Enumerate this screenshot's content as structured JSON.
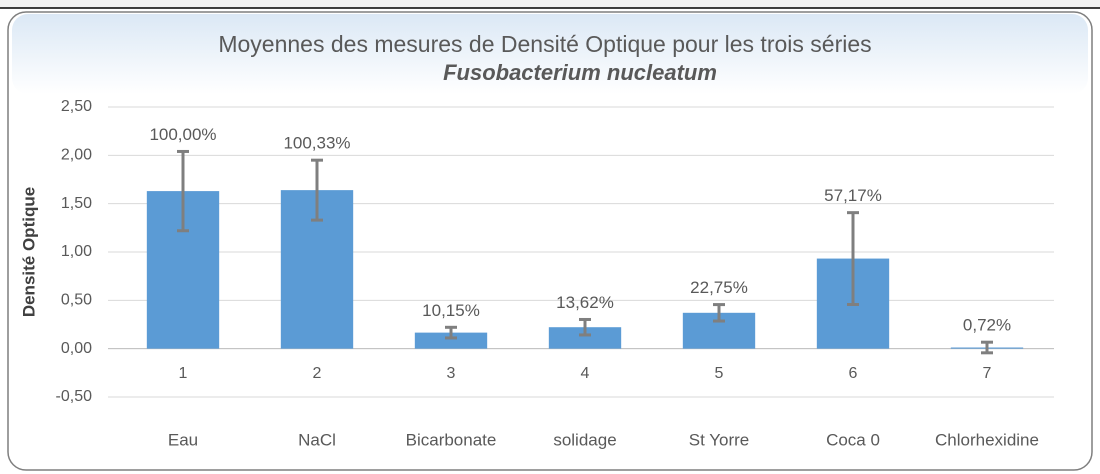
{
  "chart_data": {
    "type": "bar",
    "title": "Moyennes des mesures de Densité Optique pour les trois séries",
    "subtitle": "Fusobacterium nucleatum",
    "y_label": "Densité Optique",
    "category_numbers": [
      1,
      2,
      3,
      4,
      5,
      6,
      7
    ],
    "categories": [
      "Eau",
      "NaCl",
      "Bicarbonate",
      "solidage",
      "St Yorre",
      "Coca 0",
      "Chlorhexidine"
    ],
    "values": [
      1.63,
      1.64,
      0.166,
      0.222,
      0.371,
      0.932,
      0.012
    ],
    "errors": [
      0.41,
      0.31,
      0.055,
      0.08,
      0.085,
      0.475,
      0.055
    ],
    "data_labels": [
      "100,00%",
      "100,33%",
      "10,15%",
      "13,62%",
      "22,75%",
      "57,17%",
      "0,72%"
    ],
    "color": "#5b9bd5",
    "error_color": "#7f7f7f",
    "ylim": [
      -0.5,
      2.5
    ],
    "yticks": [
      {
        "value": -0.5,
        "label": "-0,50"
      },
      {
        "value": 0,
        "label": "0,00"
      },
      {
        "value": 0.5,
        "label": "0,50"
      },
      {
        "value": 1,
        "label": "1,00"
      },
      {
        "value": 1.5,
        "label": "1,50"
      },
      {
        "value": 2,
        "label": "2,00"
      },
      {
        "value": 2.5,
        "label": "2,50"
      }
    ],
    "grid": true
  }
}
